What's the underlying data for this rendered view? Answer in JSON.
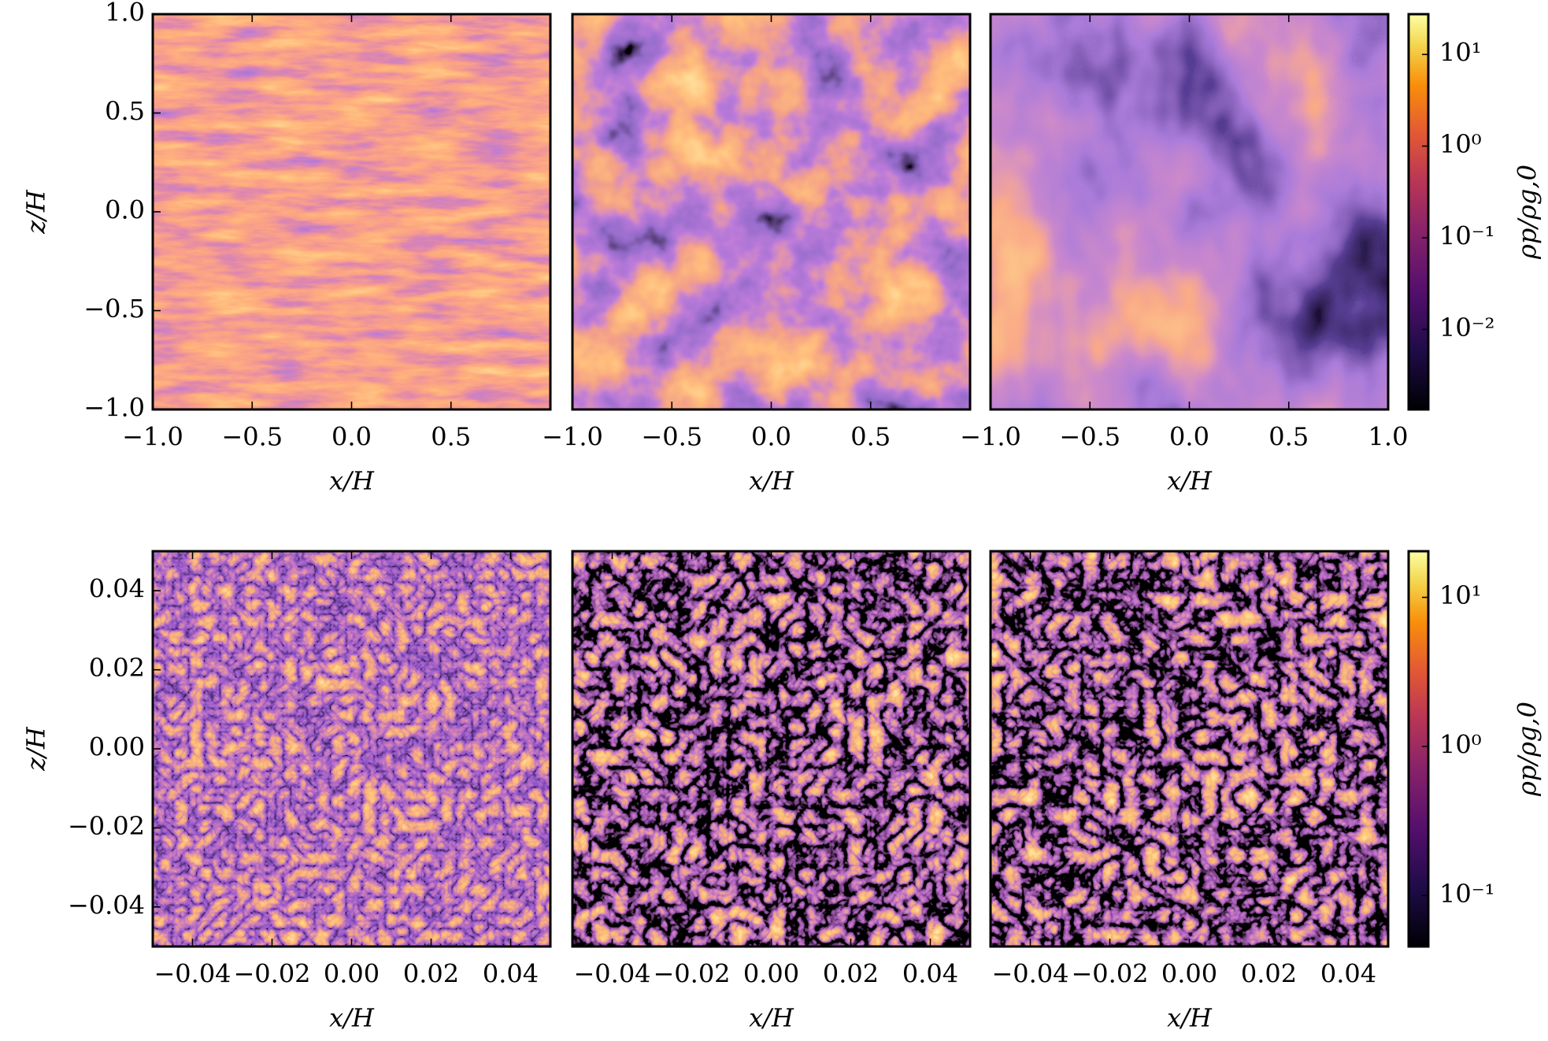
{
  "chart_data": [
    {
      "type": "heatmap",
      "xlabel": "x/H",
      "ylabel": "z/H",
      "xlim": [
        -1,
        1
      ],
      "ylim": [
        -1,
        1
      ],
      "xticks": [
        {
          "value": -1,
          "label": "−1.0"
        },
        {
          "value": -0.5,
          "label": "−0.5"
        },
        {
          "value": 0,
          "label": "0.0"
        },
        0.5
      ],
      "yticks": [
        {
          "value": -1,
          "label": "−1.0"
        },
        {
          "value": -0.5,
          "label": "−0.5"
        },
        {
          "value": 0,
          "label": "0.0"
        },
        0.5,
        {
          "value": 1,
          "label": "1.0"
        }
      ]
    },
    {
      "type": "heatmap",
      "xlabel": "x/H",
      "xlim": [
        -1,
        1
      ],
      "ylim": [
        -1,
        1
      ],
      "xticks": [
        {
          "value": -1,
          "label": "−1.0"
        },
        {
          "value": -0.5,
          "label": "−0.5"
        },
        {
          "value": 0,
          "label": "0.0"
        },
        0.5
      ]
    },
    {
      "type": "heatmap",
      "xlabel": "x/H",
      "xlim": [
        -1,
        1
      ],
      "ylim": [
        -1,
        1
      ],
      "xticks": [
        {
          "value": -1,
          "label": "−1.0"
        },
        {
          "value": -0.5,
          "label": "−0.5"
        },
        {
          "value": 0,
          "label": "0.0"
        },
        0.5,
        {
          "value": 1,
          "label": "1.0"
        }
      ],
      "colorbar": {
        "label": "ρp/ρg,0",
        "scale": "log",
        "lim": [
          0.00134,
          27.5
        ],
        "ticks": [
          {
            "value": 0.01,
            "label": "10⁻²"
          },
          {
            "value": 0.1,
            "label": "10⁻¹"
          },
          {
            "value": 1,
            "label": "10⁰"
          },
          {
            "value": 10,
            "label": "10¹"
          }
        ]
      }
    },
    {
      "type": "heatmap",
      "xlabel": "x/H",
      "ylabel": "z/H",
      "xlim": [
        -0.05,
        0.05
      ],
      "ylim": [
        -0.05,
        0.05
      ],
      "xticks": [
        {
          "value": -0.04,
          "label": "−0.04"
        },
        {
          "value": -0.02,
          "label": "−0.02"
        },
        {
          "value": 0,
          "label": "0.00"
        },
        0.02,
        0.04
      ],
      "yticks": [
        {
          "value": -0.04,
          "label": "−0.04"
        },
        {
          "value": -0.02,
          "label": "−0.02"
        },
        {
          "value": 0,
          "label": "0.00"
        },
        0.02,
        0.04
      ]
    },
    {
      "type": "heatmap",
      "xlabel": "x/H",
      "xlim": [
        -0.05,
        0.05
      ],
      "ylim": [
        -0.05,
        0.05
      ],
      "xticks": [
        {
          "value": -0.04,
          "label": "−0.04"
        },
        {
          "value": -0.02,
          "label": "−0.02"
        },
        {
          "value": 0,
          "label": "0.00"
        },
        0.02,
        0.04
      ]
    },
    {
      "type": "heatmap",
      "xlabel": "x/H",
      "xlim": [
        -0.05,
        0.05
      ],
      "ylim": [
        -0.05,
        0.05
      ],
      "xticks": [
        {
          "value": -0.04,
          "label": "−0.04"
        },
        {
          "value": -0.02,
          "label": "−0.02"
        },
        {
          "value": 0,
          "label": "0.00"
        },
        0.02,
        0.04
      ],
      "colorbar": {
        "label": "ρp/ρg,0",
        "scale": "log",
        "lim": [
          0.0455,
          20.4
        ],
        "ticks": [
          {
            "value": 0.1,
            "label": "10⁻¹"
          },
          {
            "value": 1,
            "label": "10⁰"
          },
          {
            "value": 10,
            "label": "10¹"
          }
        ]
      }
    }
  ]
}
